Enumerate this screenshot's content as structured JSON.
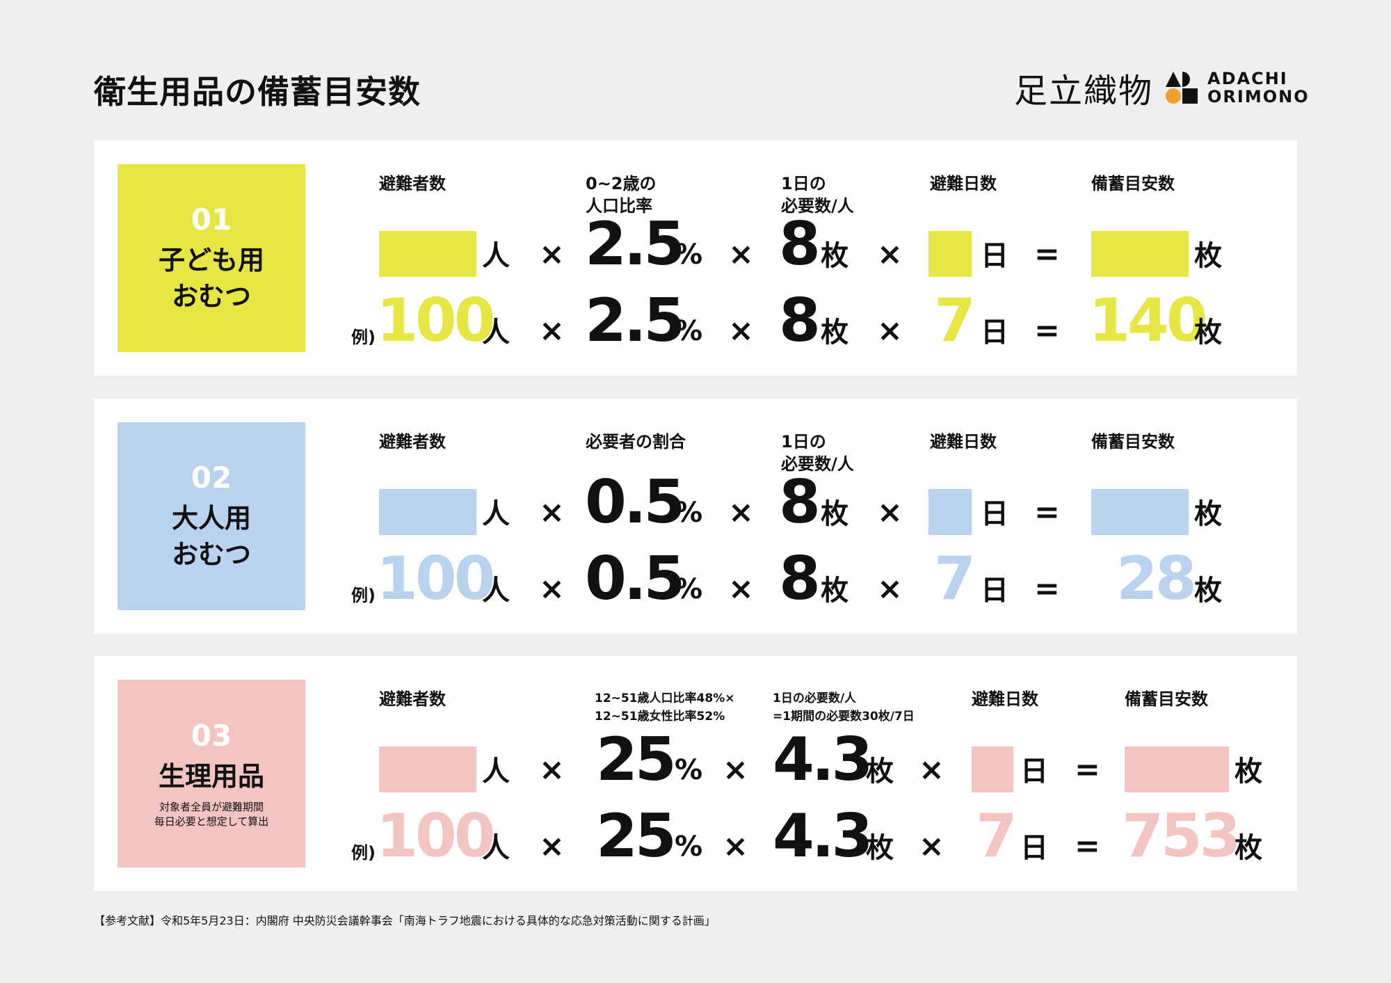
{
  "page": {
    "title": "衛生用品の備蓄目安数",
    "logo_jp": "足立織物",
    "logo_en_1": "ADACHI",
    "logo_en_2": "ORIMONO",
    "footer": "【参考文献】令和5年5月23日：内閣府 中央防災会議幹事会「南海トラフ地震における具体的な応急対策活動に関する計画」"
  },
  "colors": {
    "yellow": "#e6e645",
    "blue": "#b9d3ef",
    "pink": "#f3c5c2"
  },
  "rows": [
    {
      "num": "01",
      "name_1": "子ども用",
      "name_2": "おむつ",
      "h_evacuees": "避難者数",
      "h_ratio_1": "0~2歳の",
      "h_ratio_2": "人口比率",
      "h_need_1": "1日の",
      "h_need_2": "必要数/人",
      "h_days": "避難日数",
      "h_total": "備蓄目安数",
      "ratio": "2.5",
      "need": "8",
      "ex_people": "100",
      "ex_days": "7",
      "ex_total": "140"
    },
    {
      "num": "02",
      "name_1": "大人用",
      "name_2": "おむつ",
      "h_evacuees": "避難者数",
      "h_ratio_1": "必要者の割合",
      "h_need_1": "1日の",
      "h_need_2": "必要数/人",
      "h_days": "避難日数",
      "h_total": "備蓄目安数",
      "ratio": "0.5",
      "need": "8",
      "ex_people": "100",
      "ex_days": "7",
      "ex_total": "28"
    },
    {
      "num": "03",
      "name_1": "生理用品",
      "note_1": "対象者全員が避難期間",
      "note_2": "毎日必要と想定して算出",
      "h_evacuees": "避難者数",
      "h_ratio_1": "12~51歳人口比率48%×",
      "h_ratio_2": "12~51歳女性比率52%",
      "h_need_1": "1日の必要数/人",
      "h_need_2": "=1期間の必要数30枚/7日",
      "h_days": "避難日数",
      "h_total": "備蓄目安数",
      "ratio": "25",
      "need": "4.3",
      "ex_people": "100",
      "ex_days": "7",
      "ex_total": "753"
    }
  ],
  "symbols": {
    "unit_people": "人",
    "unit_pieces": "枚",
    "unit_days": "日",
    "pct": "%",
    "times": "×",
    "equals": "=",
    "example": "例)"
  }
}
